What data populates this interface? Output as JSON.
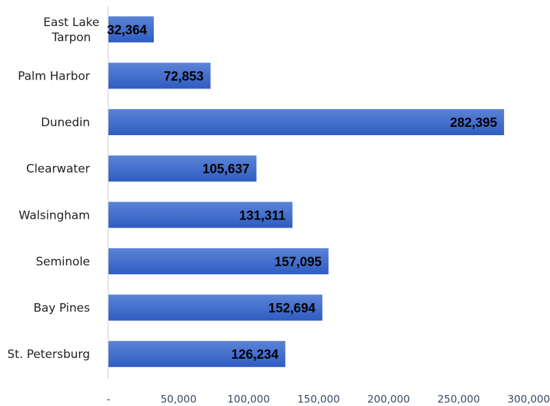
{
  "chart_data": {
    "type": "bar",
    "orientation": "horizontal",
    "categories": [
      "East Lake Tarpon",
      "Palm Harbor",
      "Dunedin",
      "Clearwater",
      "Walsingham",
      "Seminole",
      "Bay Pines",
      "St. Petersburg"
    ],
    "category_lines": [
      [
        "East Lake",
        "Tarpon"
      ],
      [
        "Palm Harbor"
      ],
      [
        "Dunedin"
      ],
      [
        "Clearwater"
      ],
      [
        "Walsingham"
      ],
      [
        "Seminole"
      ],
      [
        "Bay Pines"
      ],
      [
        "St. Petersburg"
      ]
    ],
    "values": [
      32364,
      72853,
      282395,
      105637,
      131311,
      157095,
      152694,
      126234
    ],
    "data_labels": [
      "32,364",
      "72,853",
      "282,395",
      "105,637",
      "131,311",
      "157,095",
      "152,694",
      "126,234"
    ],
    "x_ticks": [
      0,
      50000,
      100000,
      150000,
      200000,
      250000,
      300000
    ],
    "x_tick_labels": [
      "-",
      "50,000",
      "100,000",
      "150,000",
      "200,000",
      "250,000",
      "300,000"
    ],
    "xlim": [
      0,
      300000
    ],
    "title": "",
    "xlabel": "",
    "ylabel": "",
    "grid": false,
    "legend": "none",
    "colors": {
      "bar_top": "#5b84d6",
      "bar_bottom": "#2f5cc2",
      "axis_line": "#d9d9d9"
    }
  }
}
